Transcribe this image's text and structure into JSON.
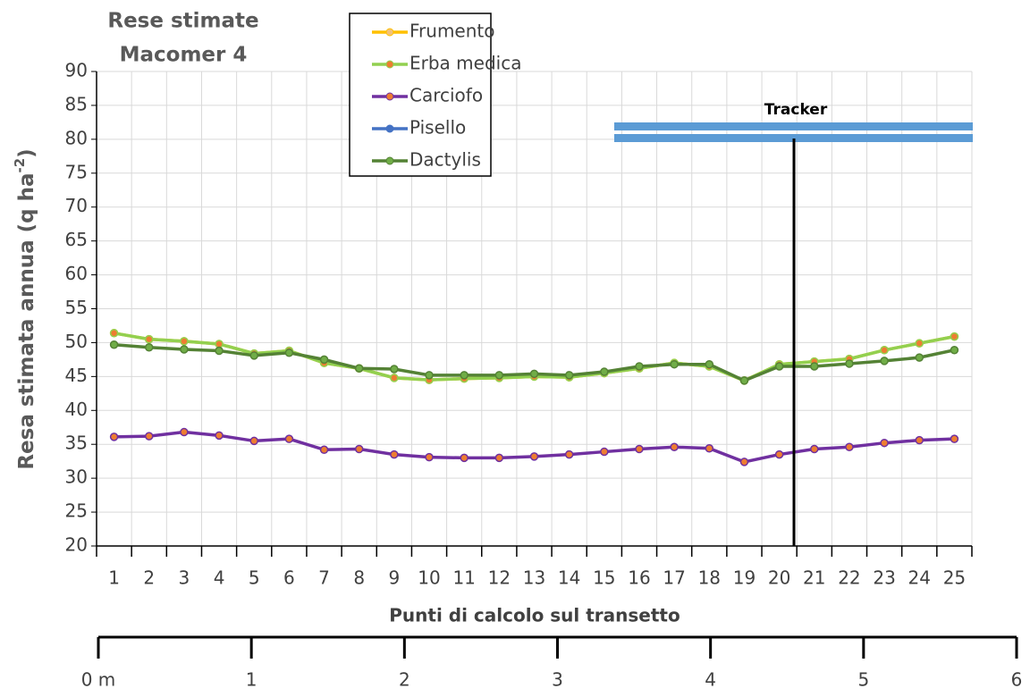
{
  "chart_data": {
    "type": "line",
    "title": [
      "Rese stimate",
      "Macomer 4"
    ],
    "y_label": "Resa stimata annua (q ha",
    "y_label_sup": "-2",
    "y_label_end": ")",
    "x_label": "Punti di calcolo sul transetto",
    "annotation": "Tracker",
    "categories": [
      "1",
      "2",
      "3",
      "4",
      "5",
      "6",
      "7",
      "8",
      "9",
      "10",
      "11",
      "12",
      "13",
      "14",
      "15",
      "16",
      "17",
      "18",
      "19",
      "20",
      "21",
      "22",
      "23",
      "24",
      "25"
    ],
    "ylim": [
      20,
      90
    ],
    "yticks": [
      20,
      25,
      30,
      35,
      40,
      45,
      50,
      55,
      60,
      65,
      70,
      75,
      80,
      85,
      90
    ],
    "grid": true,
    "x2lim": [
      0,
      6
    ],
    "x2ticks": [
      {
        "value": 0,
        "label": "0 m"
      },
      1,
      2,
      3,
      4,
      5,
      6
    ],
    "series": [
      {
        "name": "Frumento",
        "color": "#ffc000",
        "marker_color": "#f2c27a",
        "values": [
          51.4,
          50.5,
          50.2,
          49.8,
          48.4,
          48.8,
          47.0,
          46.2,
          44.8,
          44.5,
          44.7,
          44.8,
          45.0,
          44.9,
          45.5,
          46.2,
          47.0,
          46.5,
          44.4,
          46.8,
          47.2,
          47.6,
          48.9,
          49.9,
          50.9
        ]
      },
      {
        "name": "Erba medica",
        "color": "#92d050",
        "marker_color": "#ed7d31",
        "values": [
          51.4,
          50.5,
          50.2,
          49.8,
          48.4,
          48.8,
          47.0,
          46.2,
          44.8,
          44.5,
          44.7,
          44.8,
          45.0,
          44.9,
          45.5,
          46.2,
          47.0,
          46.5,
          44.4,
          46.8,
          47.2,
          47.6,
          48.9,
          49.9,
          50.9
        ]
      },
      {
        "name": "Carciofo",
        "color": "#7030a0",
        "marker_color": "#ed7d31",
        "values": [
          36.1,
          36.2,
          36.8,
          36.3,
          35.5,
          35.8,
          34.2,
          34.3,
          33.5,
          33.1,
          33.0,
          33.0,
          33.2,
          33.5,
          33.9,
          34.3,
          34.6,
          34.4,
          32.4,
          33.5,
          34.3,
          34.6,
          35.2,
          35.6,
          35.8
        ]
      },
      {
        "name": "Pisello",
        "color": "#4472c4",
        "marker_color": "#4472c4",
        "values": [
          null,
          null,
          null,
          null,
          null,
          null,
          null,
          null,
          null,
          null,
          null,
          null,
          null,
          null,
          null,
          null,
          null,
          null,
          null,
          null,
          null,
          null,
          null,
          null,
          null
        ]
      },
      {
        "name": "Dactylis",
        "color": "#548235",
        "marker_color": "#70ad47",
        "values": [
          49.7,
          49.3,
          49.0,
          48.8,
          48.1,
          48.5,
          47.5,
          46.2,
          46.1,
          45.2,
          45.2,
          45.2,
          45.4,
          45.2,
          45.7,
          46.5,
          46.8,
          46.8,
          44.4,
          46.5,
          46.5,
          46.9,
          47.3,
          47.8,
          48.9
        ]
      }
    ]
  }
}
